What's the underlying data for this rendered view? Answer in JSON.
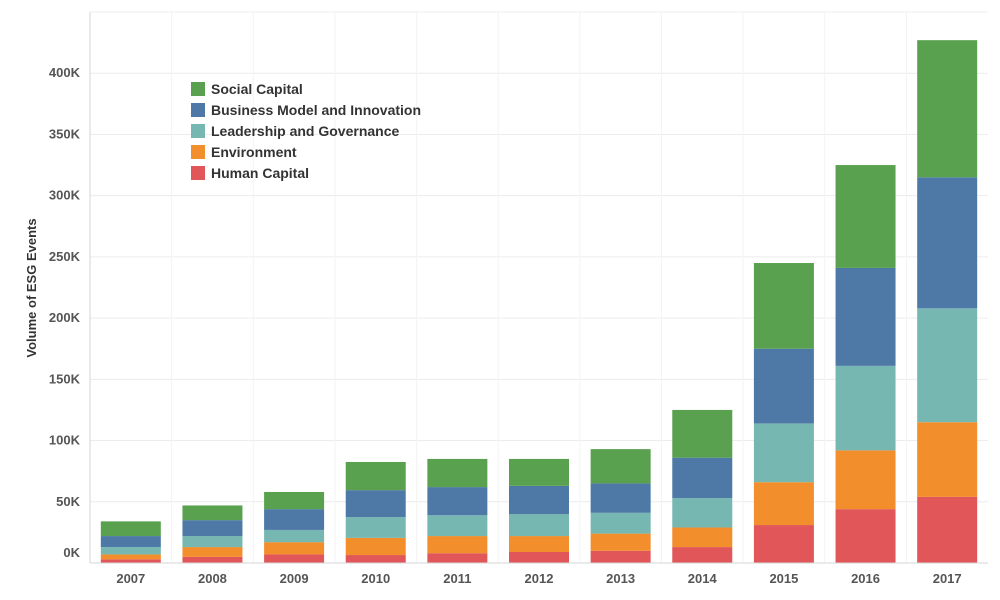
{
  "chart_data": {
    "type": "bar",
    "stacked": true,
    "title": "",
    "xlabel": "",
    "ylabel": "Volume of ESG Events",
    "ylim": [
      0,
      450000
    ],
    "yticks": [
      0,
      50000,
      100000,
      150000,
      200000,
      250000,
      300000,
      350000,
      400000
    ],
    "ytick_labels": [
      "0K",
      "50K",
      "100K",
      "150K",
      "200K",
      "250K",
      "300K",
      "350K",
      "400K"
    ],
    "categories": [
      "2007",
      "2008",
      "2009",
      "2010",
      "2011",
      "2012",
      "2013",
      "2014",
      "2015",
      "2016",
      "2017"
    ],
    "series": [
      {
        "name": "Human Capital",
        "color": "#e15759",
        "values": [
          3000,
          5000,
          7000,
          6500,
          8000,
          9000,
          10000,
          13000,
          31000,
          44000,
          54000
        ]
      },
      {
        "name": "Environment",
        "color": "#f28e2b",
        "values": [
          4000,
          8000,
          10000,
          14000,
          14000,
          13000,
          14000,
          16000,
          35000,
          48000,
          61000
        ]
      },
      {
        "name": "Leadership and Governance",
        "color": "#76b7b2",
        "values": [
          6000,
          9000,
          10000,
          17000,
          17000,
          18000,
          17000,
          24000,
          48000,
          69000,
          93000
        ]
      },
      {
        "name": "Business Model and Innovation",
        "color": "#4e79a7",
        "values": [
          9000,
          13000,
          17000,
          22000,
          23000,
          23000,
          24000,
          33000,
          61000,
          80000,
          107000
        ]
      },
      {
        "name": "Social Capital",
        "color": "#59a14f",
        "values": [
          12000,
          12000,
          14000,
          23000,
          23000,
          22000,
          28000,
          39000,
          70000,
          84000,
          112000
        ]
      }
    ],
    "legend": {
      "position": "top-left",
      "order": [
        "Social Capital",
        "Business Model and Innovation",
        "Leadership and Governance",
        "Environment",
        "Human Capital"
      ]
    },
    "grid": true
  }
}
